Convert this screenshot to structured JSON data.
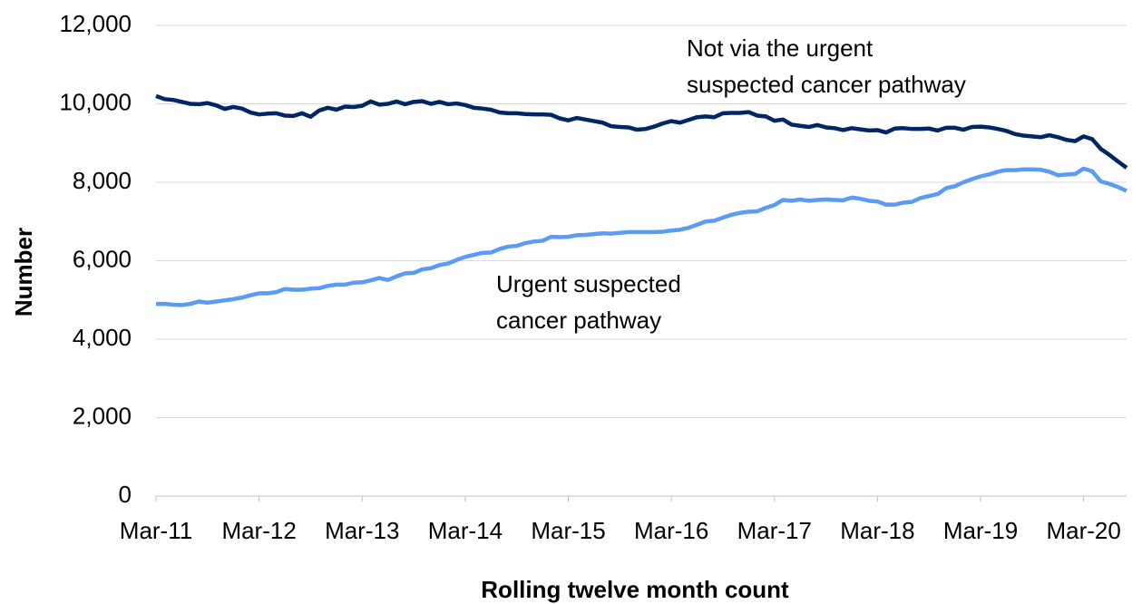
{
  "chart_data": {
    "type": "line",
    "y_label": "Number",
    "x_label": "Rolling twelve month count",
    "categories": [
      "Mar-11",
      null,
      null,
      null,
      null,
      null,
      null,
      null,
      null,
      null,
      null,
      null,
      "Mar-12",
      null,
      null,
      null,
      null,
      null,
      null,
      null,
      null,
      null,
      null,
      null,
      "Mar-13",
      null,
      null,
      null,
      null,
      null,
      null,
      null,
      null,
      null,
      null,
      null,
      "Mar-14",
      null,
      null,
      null,
      null,
      null,
      null,
      null,
      null,
      null,
      null,
      null,
      "Mar-15",
      null,
      null,
      null,
      null,
      null,
      null,
      null,
      null,
      null,
      null,
      null,
      "Mar-16",
      null,
      null,
      null,
      null,
      null,
      null,
      null,
      null,
      null,
      null,
      null,
      "Mar-17",
      null,
      null,
      null,
      null,
      null,
      null,
      null,
      null,
      null,
      null,
      null,
      "Mar-18",
      null,
      null,
      null,
      null,
      null,
      null,
      null,
      null,
      null,
      null,
      null,
      "Mar-19",
      null,
      null,
      null,
      null,
      null,
      null,
      null,
      null,
      null,
      null,
      null,
      "Mar-20",
      null,
      null,
      null,
      null,
      null
    ],
    "series": [
      {
        "color": "#002663",
        "values": [
          10200,
          10120,
          10100,
          10050,
          10000,
          9990,
          10020,
          9960,
          9870,
          9920,
          9880,
          9780,
          9730,
          9750,
          9760,
          9700,
          9690,
          9760,
          9670,
          9830,
          9900,
          9850,
          9930,
          9920,
          9950,
          10060,
          9980,
          10000,
          10060,
          9990,
          10050,
          10070,
          10000,
          10050,
          9990,
          10010,
          9970,
          9900,
          9880,
          9850,
          9780,
          9760,
          9760,
          9740,
          9730,
          9730,
          9720,
          9630,
          9580,
          9640,
          9600,
          9560,
          9520,
          9430,
          9410,
          9400,
          9340,
          9360,
          9420,
          9500,
          9560,
          9520,
          9590,
          9660,
          9680,
          9660,
          9760,
          9770,
          9770,
          9790,
          9700,
          9680,
          9570,
          9600,
          9470,
          9440,
          9410,
          9460,
          9400,
          9380,
          9330,
          9380,
          9350,
          9320,
          9330,
          9270,
          9370,
          9380,
          9360,
          9360,
          9370,
          9320,
          9390,
          9390,
          9340,
          9410,
          9420,
          9400,
          9360,
          9310,
          9230,
          9190,
          9170,
          9150,
          9200,
          9150,
          9080,
          9050,
          9170,
          9100,
          8850,
          8700,
          8530,
          8370
        ]
      },
      {
        "color": "#5b9bf5",
        "values": [
          4900,
          4900,
          4880,
          4870,
          4900,
          4960,
          4930,
          4960,
          4990,
          5020,
          5060,
          5120,
          5170,
          5170,
          5200,
          5280,
          5260,
          5260,
          5290,
          5300,
          5360,
          5390,
          5390,
          5440,
          5450,
          5500,
          5560,
          5510,
          5600,
          5680,
          5690,
          5780,
          5810,
          5890,
          5930,
          6020,
          6100,
          6150,
          6200,
          6210,
          6300,
          6360,
          6380,
          6450,
          6490,
          6510,
          6610,
          6600,
          6610,
          6650,
          6660,
          6680,
          6700,
          6690,
          6710,
          6730,
          6730,
          6730,
          6730,
          6740,
          6770,
          6790,
          6840,
          6920,
          7000,
          7020,
          7100,
          7170,
          7220,
          7250,
          7260,
          7350,
          7420,
          7550,
          7530,
          7560,
          7530,
          7550,
          7560,
          7550,
          7540,
          7610,
          7580,
          7530,
          7510,
          7430,
          7430,
          7480,
          7500,
          7600,
          7650,
          7700,
          7850,
          7900,
          8000,
          8080,
          8150,
          8200,
          8270,
          8310,
          8310,
          8330,
          8330,
          8320,
          8270,
          8180,
          8200,
          8210,
          8350,
          8280,
          8020,
          7960,
          7880,
          7780
        ]
      }
    ],
    "annotations": [
      {
        "lines": [
          "Not via the urgent",
          "suspected cancer pathway"
        ]
      },
      {
        "lines": [
          "Urgent suspected",
          "cancer pathway"
        ]
      }
    ],
    "ylim": [
      0,
      12000
    ],
    "yticks": [
      0,
      {
        "value": 2000,
        "label": "2,000"
      },
      {
        "value": 4000,
        "label": "4,000"
      },
      {
        "value": 6000,
        "label": "6,000"
      },
      {
        "value": 8000,
        "label": "8,000"
      },
      {
        "value": 10000,
        "label": "10,000"
      },
      {
        "value": 12000,
        "label": "12,000"
      }
    ],
    "grid": true
  }
}
